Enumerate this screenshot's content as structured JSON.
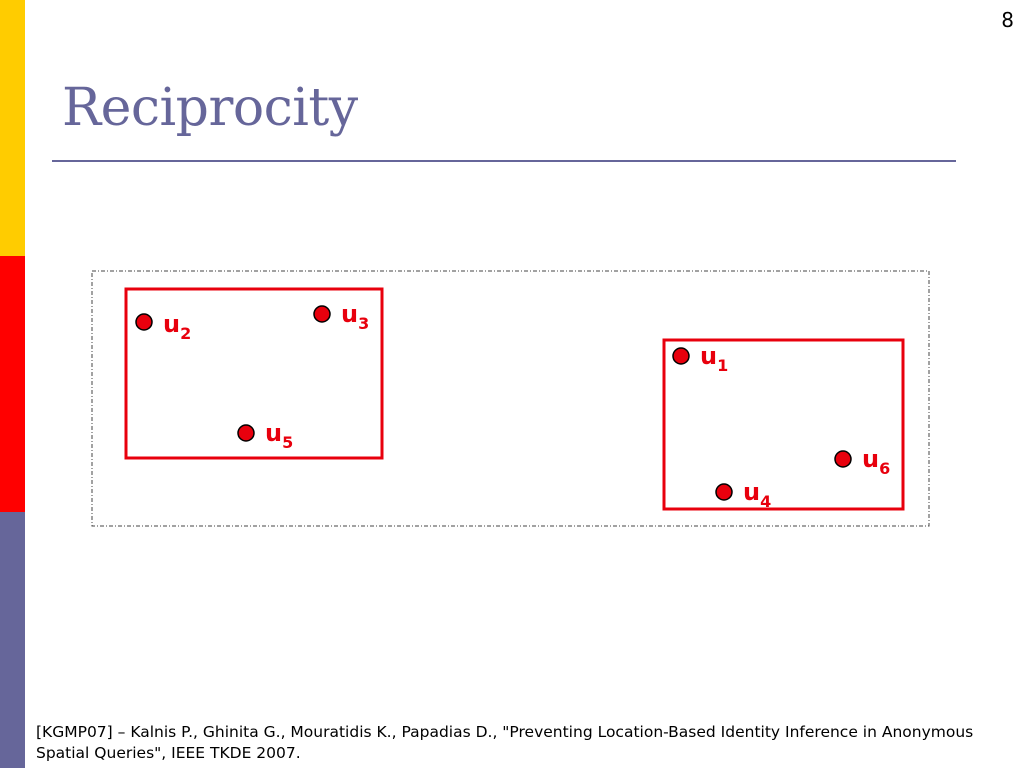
{
  "slide": {
    "number": "8",
    "title": "Reciprocity",
    "citation": "[KGMP07] – Kalnis P., Ghinita G., Mouratidis K., Papadias D., \"Preventing Location-Based Identity Inference in Anonymous Spatial Queries\", IEEE TKDE 2007."
  },
  "colors": {
    "bar_yellow": "#ffcc00",
    "bar_red": "#ff0000",
    "bar_blue": "#66669a",
    "title": "#66669a",
    "user_point": "#e8000d",
    "region_border": "#e8000d"
  },
  "diagram": {
    "users": [
      {
        "base": "u",
        "sub": "2"
      },
      {
        "base": "u",
        "sub": "3"
      },
      {
        "base": "u",
        "sub": "5"
      },
      {
        "base": "u",
        "sub": "1"
      },
      {
        "base": "u",
        "sub": "6"
      },
      {
        "base": "u",
        "sub": "4"
      }
    ]
  }
}
